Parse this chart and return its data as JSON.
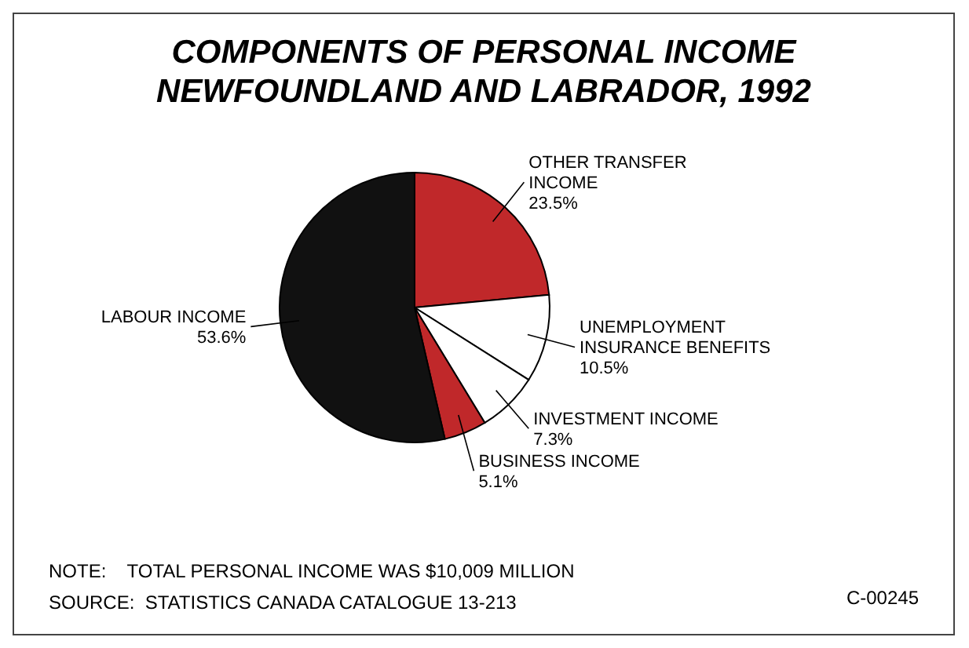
{
  "chart_data": {
    "type": "pie",
    "title": "COMPONENTS OF PERSONAL INCOME",
    "subtitle": "NEWFOUNDLAND AND LABRADOR, 1992",
    "categories": [
      "OTHER TRANSFER INCOME",
      "UNEMPLOYMENT INSURANCE BENEFITS",
      "INVESTMENT INCOME",
      "BUSINESS INCOME",
      "LABOUR INCOME"
    ],
    "values": [
      23.5,
      10.5,
      7.3,
      5.1,
      53.6
    ],
    "value_labels": [
      "23.5%",
      "10.5%",
      "7.3%",
      "5.1%",
      "53.6%"
    ],
    "colors": [
      "#c0282a",
      "#ffffff",
      "#ffffff",
      "#c0282a",
      "#111111"
    ],
    "legend": false,
    "annotations": [
      "NOTE:    TOTAL PERSONAL INCOME WAS $10,009 MILLION",
      "SOURCE:  STATISTICS CANADA CATALOGUE 13-213",
      "C-00245"
    ]
  }
}
